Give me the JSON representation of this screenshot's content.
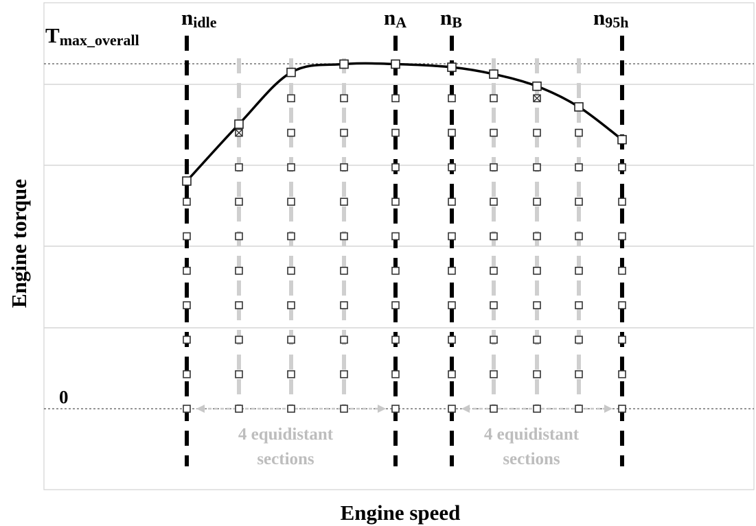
{
  "chart_data": {
    "type": "scatter",
    "xlabel": "Engine speed",
    "ylabel": "Engine torque",
    "y_tick_labels": [
      "0"
    ],
    "t_max_label": {
      "main": "T",
      "sub": "max_overall"
    },
    "grid": true,
    "key_speeds": [
      {
        "main": "n",
        "sub": "idle",
        "x": 0
      },
      {
        "main": "n",
        "sub": "A",
        "x": 4
      },
      {
        "main": "n",
        "sub": "B",
        "x": 5
      },
      {
        "main": "n",
        "sub": "95h",
        "x": 9
      }
    ],
    "speed_columns": [
      0,
      1,
      2,
      3,
      4,
      5,
      6,
      7,
      8,
      9
    ],
    "torque_steps": [
      0,
      1,
      2,
      3,
      4,
      5,
      6,
      7,
      8,
      9,
      10
    ],
    "max_torque_curve": [
      {
        "x": 0,
        "y": 6.6
      },
      {
        "x": 1,
        "y": 8.25
      },
      {
        "x": 2,
        "y": 9.75
      },
      {
        "x": 3,
        "y": 9.99
      },
      {
        "x": 4,
        "y": 9.99
      },
      {
        "x": 5,
        "y": 9.9
      },
      {
        "x": 6,
        "y": 9.7
      },
      {
        "x": 7,
        "y": 9.35
      },
      {
        "x": 8,
        "y": 8.75
      },
      {
        "x": 9,
        "y": 7.8
      }
    ],
    "grid_points_below_curve": [
      {
        "x": 0,
        "max_step": 6
      },
      {
        "x": 1,
        "max_step": 8
      },
      {
        "x": 2,
        "max_step": 9
      },
      {
        "x": 3,
        "max_step": 9
      },
      {
        "x": 4,
        "max_step": 9
      },
      {
        "x": 5,
        "max_step": 9
      },
      {
        "x": 6,
        "max_step": 9
      },
      {
        "x": 7,
        "max_step": 9
      },
      {
        "x": 8,
        "max_step": 8
      },
      {
        "x": 9,
        "max_step": 7
      }
    ],
    "crossed_points": [
      {
        "x": 1,
        "y": 8
      },
      {
        "x": 7,
        "y": 9
      }
    ],
    "annotations": [
      {
        "line1": "4 equidistant",
        "line2": "sections",
        "from_x": 0,
        "to_x": 4
      },
      {
        "line1": "4 equidistant",
        "line2": "sections",
        "from_x": 5,
        "to_x": 9
      }
    ]
  }
}
